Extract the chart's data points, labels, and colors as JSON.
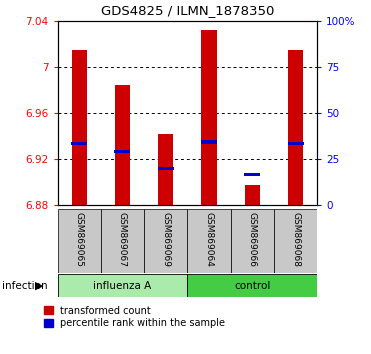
{
  "title": "GDS4825 / ILMN_1878350",
  "samples": [
    "GSM869065",
    "GSM869067",
    "GSM869069",
    "GSM869064",
    "GSM869066",
    "GSM869068"
  ],
  "transformed_count": [
    7.015,
    6.985,
    6.942,
    7.032,
    6.898,
    7.015
  ],
  "percentile_rank_y": [
    6.934,
    6.927,
    6.912,
    6.935,
    6.907,
    6.934
  ],
  "ylim_min": 6.88,
  "ylim_max": 7.04,
  "yticks": [
    6.88,
    6.92,
    6.96,
    7.0,
    7.04
  ],
  "ytick_labels": [
    "6.88",
    "6.92",
    "6.96",
    "7",
    "7.04"
  ],
  "right_yticks": [
    0,
    25,
    50,
    75,
    100
  ],
  "right_ytick_labels": [
    "0",
    "25",
    "50",
    "75",
    "100%"
  ],
  "bar_color": "#CC0000",
  "blue_color": "#0000CC",
  "bar_width": 0.35,
  "baseline": 6.88,
  "group1_color": "#AAEAAA",
  "group2_color": "#44CC44",
  "sample_bg": "#C8C8C8"
}
